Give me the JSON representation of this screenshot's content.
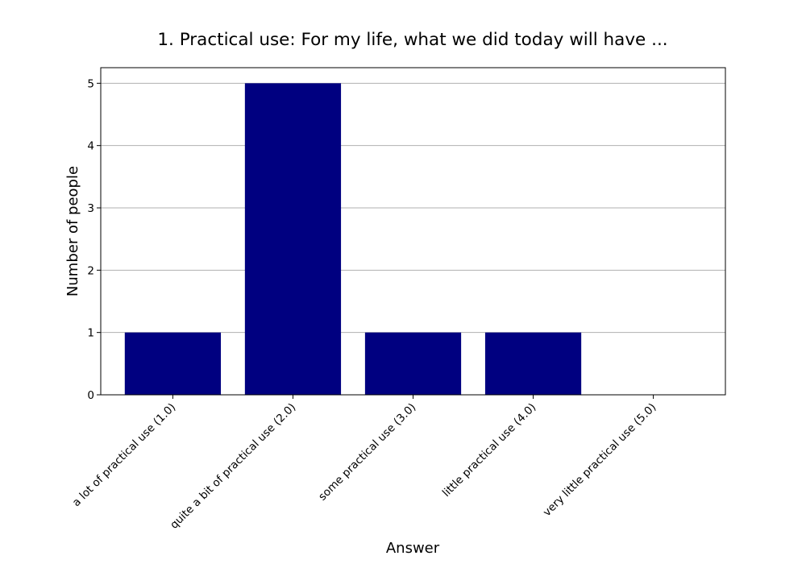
{
  "chart_data": {
    "type": "bar",
    "title": "1. Practical use: For my life, what we did today will have ...",
    "xlabel": "Answer",
    "ylabel": "Number of people",
    "categories": [
      "a lot of practical use (1.0)",
      "quite a bit of practical use (2.0)",
      "some practical use (3.0)",
      "little practical use (4.0)",
      "very little practical use (5.0)"
    ],
    "values": [
      1,
      5,
      1,
      1,
      0
    ],
    "ylim": [
      0,
      5.25
    ],
    "yticks": [
      0,
      1,
      2,
      3,
      4,
      5
    ],
    "grid": "y",
    "bar_color": "#000080"
  }
}
